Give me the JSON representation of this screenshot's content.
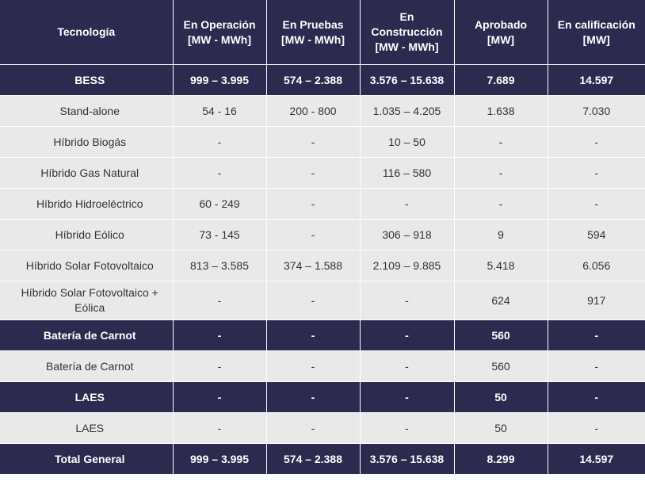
{
  "header": {
    "col0": "Tecnología",
    "col1_l1": "En Operación",
    "col1_l2": "[MW - MWh]",
    "col2_l1": "En Pruebas",
    "col2_l2": "[MW - MWh]",
    "col3_l1": "En",
    "col3_l2": "Construcción",
    "col3_l3": "[MW - MWh]",
    "col4_l1": "Aprobado",
    "col4_l2": "[MW]",
    "col5_l1": "En calificación",
    "col5_l2": "[MW]"
  },
  "rows": [
    {
      "label": "BESS",
      "c1": "999 – 3.995",
      "c2": "574 – 2.388",
      "c3": "3.576 – 15.638",
      "c4": "7.689",
      "c5": "14.597"
    },
    {
      "label": "Stand-alone",
      "c1": "54 - 16",
      "c2": "200 - 800",
      "c3": "1.035 – 4.205",
      "c4": "1.638",
      "c5": "7.030"
    },
    {
      "label": "Híbrido Biogás",
      "c1": "-",
      "c2": "-",
      "c3": "10 – 50",
      "c4": "-",
      "c5": "-"
    },
    {
      "label": "Híbrido Gas Natural",
      "c1": "-",
      "c2": "-",
      "c3": "116 – 580",
      "c4": "-",
      "c5": "-"
    },
    {
      "label": "Híbrido Hidroeléctrico",
      "c1": "60 - 249",
      "c2": "-",
      "c3": "-",
      "c4": "-",
      "c5": "-"
    },
    {
      "label": "Híbrido Eólico",
      "c1": "73 - 145",
      "c2": "-",
      "c3": "306 – 918",
      "c4": "9",
      "c5": "594"
    },
    {
      "label": "Híbrido Solar Fotovoltaico",
      "c1": "813 – 3.585",
      "c2": "374 – 1.588",
      "c3": "2.109 – 9.885",
      "c4": "5.418",
      "c5": "6.056"
    },
    {
      "label_l1": "Híbrido Solar Fotovoltaico +",
      "label_l2": "Eólica",
      "c1": "-",
      "c2": "-",
      "c3": "-",
      "c4": "624",
      "c5": "917"
    },
    {
      "label": "Batería de Carnot",
      "c1": "-",
      "c2": "-",
      "c3": "-",
      "c4": "560",
      "c5": "-"
    },
    {
      "label": "Batería de Carnot",
      "c1": "-",
      "c2": "-",
      "c3": "-",
      "c4": "560",
      "c5": "-"
    },
    {
      "label": "LAES",
      "c1": "-",
      "c2": "-",
      "c3": "-",
      "c4": "50",
      "c5": "-"
    },
    {
      "label": "LAES",
      "c1": "-",
      "c2": "-",
      "c3": "-",
      "c4": "50",
      "c5": "-"
    },
    {
      "label": "Total General",
      "c1": "999 – 3.995",
      "c2": "574 – 2.388",
      "c3": "3.576 – 15.638",
      "c4": "8.299",
      "c5": "14.597"
    }
  ],
  "colors": {
    "header_bg": "#2c2a4e",
    "row_bg": "#e9e9e9",
    "header_text": "#ffffff"
  }
}
